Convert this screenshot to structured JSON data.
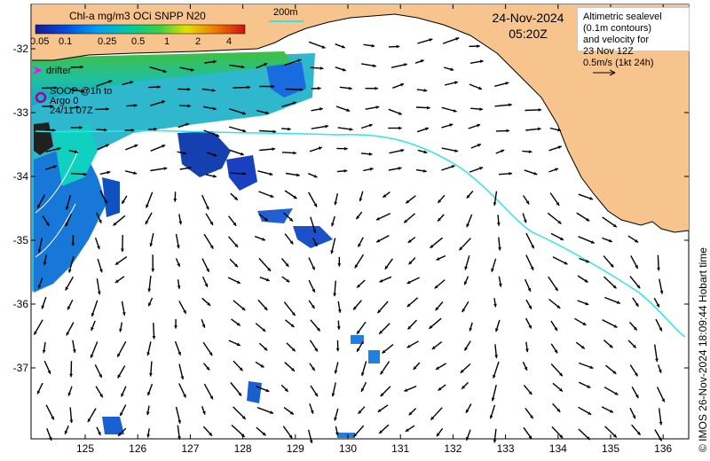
{
  "legend": {
    "title": "Chl-a mg/m3 OCi SNPP N20",
    "ticks": [
      "0.05",
      "0.1",
      "0.25",
      "0.5",
      "1",
      "2",
      "4"
    ]
  },
  "scale_bar": {
    "label": "200m"
  },
  "date": {
    "day": "24-Nov-2024",
    "time": "05:20Z"
  },
  "info": {
    "lines": [
      "Altimetric sealevel",
      "(0.1m contours)",
      "and velocity for",
      "23 Nov 12Z",
      "0.5m/s (1kt 24h)"
    ]
  },
  "markers": {
    "drifter_label": "drifter",
    "soop_label": "SOOP @1h to",
    "argo_label": "Argo 0",
    "argo_date": "24/11 07Z"
  },
  "axes": {
    "x_ticks": [
      "125",
      "126",
      "127",
      "128",
      "129",
      "130",
      "131",
      "132",
      "133",
      "134",
      "135",
      "136"
    ],
    "y_ticks": [
      "-32",
      "-33",
      "-34",
      "-35",
      "-36",
      "-37"
    ]
  },
  "footer": {
    "credit": "© IMOS 26-Nov-2024 18:09:44 Hobart time"
  },
  "colors": {
    "land": "#f8c48e",
    "contour_200m": "#2ee6e6",
    "drifter": "#ff00ff",
    "argo": "#a000a0",
    "vector": "#000000"
  }
}
